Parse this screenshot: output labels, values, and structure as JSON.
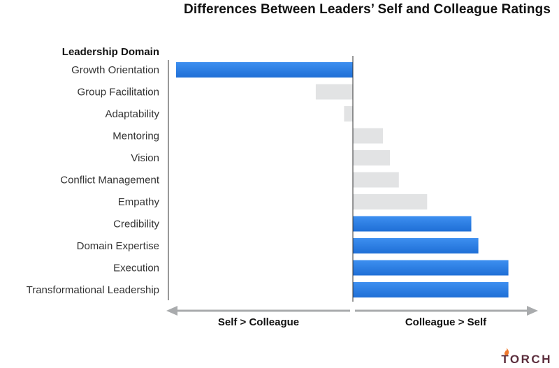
{
  "title": "Differences Between Leaders’ Self and Colleague Ratings",
  "logo": {
    "text": "TORCH",
    "icon": "flame-icon"
  },
  "colors": {
    "highlight": "#1f6fd6",
    "neutral": "#e2e3e4",
    "axis": "#333333",
    "arrow": "#a9abad"
  },
  "chart_data": {
    "type": "bar",
    "orientation": "horizontal",
    "category_axis_label": "Leadership Domain",
    "categories": [
      "Growth Orientation",
      "Group Facilitation",
      "Adaptability",
      "Mentoring",
      "Vision",
      "Conflict Management",
      "Empathy",
      "Credibility",
      "Domain Expertise",
      "Execution",
      "Transformational Leadership"
    ],
    "values": [
      -1.0,
      -0.21,
      -0.05,
      0.17,
      0.21,
      0.26,
      0.42,
      0.67,
      0.71,
      0.88,
      0.88
    ],
    "highlighted": [
      true,
      false,
      false,
      false,
      false,
      false,
      false,
      true,
      true,
      true,
      true
    ],
    "xlim": [
      -1.05,
      1.05
    ],
    "direction_labels": {
      "negative": "Self > Colleague",
      "positive": "Colleague > Self"
    },
    "grid": false,
    "legend": "none"
  }
}
